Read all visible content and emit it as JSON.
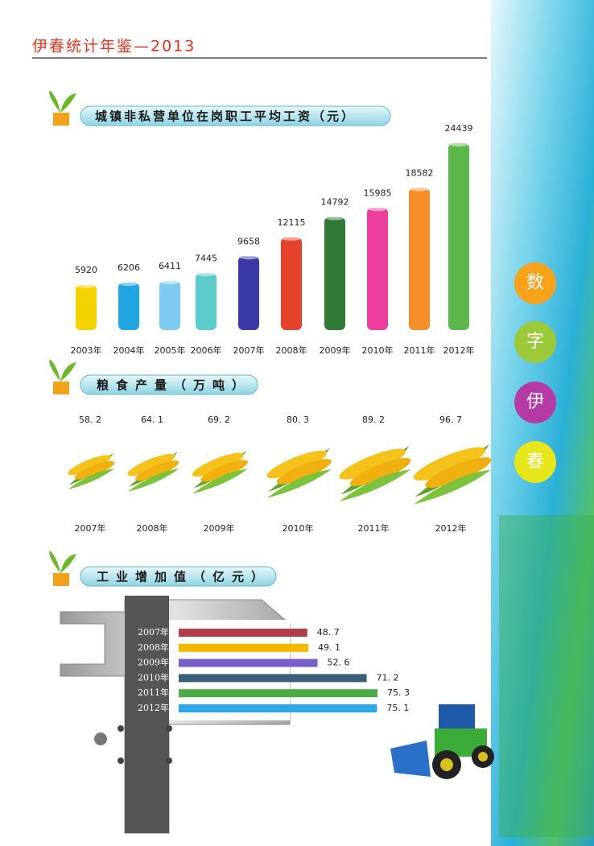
{
  "header": {
    "title": "伊春统计年鉴—2013"
  },
  "side_labels": [
    "数",
    "字",
    "伊",
    "春"
  ],
  "chart_data": [
    {
      "type": "bar",
      "title": "城镇非私营单位在岗职工平均工资（元）",
      "categories": [
        "2003年",
        "2004年",
        "2005年",
        "2006年",
        "2007年",
        "2008年",
        "2009年",
        "2010年",
        "2011年",
        "2012年"
      ],
      "values": [
        5920,
        6206,
        6411,
        7445,
        9658,
        12115,
        14792,
        15985,
        18582,
        24439
      ],
      "colors": [
        "#f3d200",
        "#21a6e2",
        "#7fcaf0",
        "#5ccbc9",
        "#3b39a6",
        "#e5432c",
        "#2f7a35",
        "#ec3f9f",
        "#f68e2a",
        "#5cb84a"
      ]
    },
    {
      "type": "pictogram",
      "title": "粮食产量（万吨）",
      "categories": [
        "2007年",
        "2008年",
        "2009年",
        "2010年",
        "2011年",
        "2012年"
      ],
      "values": [
        58.2,
        64.1,
        69.2,
        80.3,
        89.2,
        96.7
      ],
      "value_labels": [
        "58. 2",
        "64. 1",
        "69. 2",
        "80. 3",
        "89. 2",
        "96. 7"
      ]
    },
    {
      "type": "hbar",
      "title": "工业增加值（亿元）",
      "categories": [
        "2007年",
        "2008年",
        "2009年",
        "2010年",
        "2011年",
        "2012年"
      ],
      "values": [
        48.7,
        49.1,
        52.6,
        71.2,
        75.3,
        75.1
      ],
      "value_labels": [
        "48. 7",
        "49. 1",
        "52. 6",
        "71. 2",
        "75. 3",
        "75. 1"
      ],
      "colors": [
        "#b23b49",
        "#f5b800",
        "#7b5fc8",
        "#3b5e79",
        "#4caa4a",
        "#2aa7e6"
      ]
    }
  ]
}
